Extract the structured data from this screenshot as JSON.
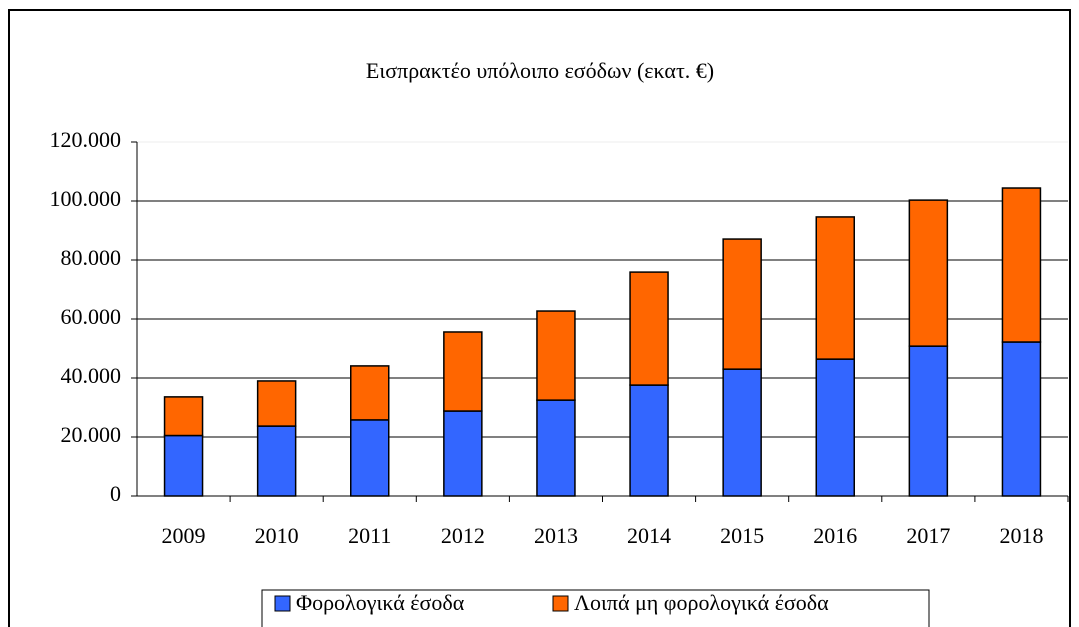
{
  "chart_data": {
    "type": "stacked_bar",
    "title": "Εισπρακτέο υπόλοιπο εσόδων (εκατ. €)",
    "categories": [
      "2009",
      "2010",
      "2011",
      "2012",
      "2013",
      "2014",
      "2015",
      "2016",
      "2017",
      "2018"
    ],
    "series": [
      {
        "name": "Φορολογικά έσοδα",
        "color": "#3366ff",
        "values": [
          20500,
          23700,
          25800,
          28800,
          32500,
          37600,
          43000,
          46400,
          50800,
          52200
        ]
      },
      {
        "name": "Λοιπά μη φορολογικά έσοδα",
        "color": "#ff6600",
        "values": [
          13100,
          15300,
          18300,
          26800,
          30200,
          38300,
          44100,
          48200,
          49500,
          52200
        ]
      }
    ],
    "ylim": [
      0,
      120000
    ],
    "yticks": [
      0,
      {
        "value": 20000,
        "label": "20.000"
      },
      {
        "value": 40000,
        "label": "40.000"
      },
      {
        "value": 60000,
        "label": "60.000"
      },
      {
        "value": 80000,
        "label": "80.000"
      },
      {
        "value": 100000,
        "label": "100.000"
      },
      {
        "value": 120000,
        "label": "120.000"
      }
    ],
    "grid": true,
    "legend": "bottom"
  }
}
